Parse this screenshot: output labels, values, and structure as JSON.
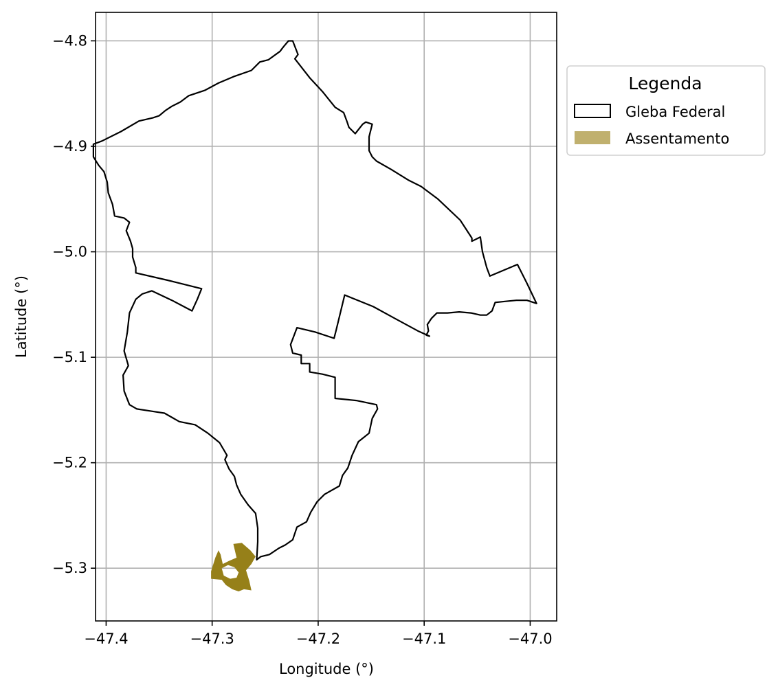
{
  "chart_data": {
    "type": "map",
    "xlabel": "Longitude (°)",
    "ylabel": "Latitude (°)",
    "xlim": [
      -47.41,
      -46.975
    ],
    "ylim": [
      -5.35,
      -4.773
    ],
    "grid": true,
    "xticks": [
      -47.4,
      -47.3,
      -47.2,
      -47.1,
      -47.0
    ],
    "xtick_labels": [
      "−47.4",
      "−47.3",
      "−47.2",
      "−47.1",
      "−47.0"
    ],
    "yticks": [
      -4.8,
      -4.9,
      -5.0,
      -5.1,
      -5.2,
      -5.3
    ],
    "ytick_labels": [
      "−4.8",
      "−4.9",
      "−5.0",
      "−5.1",
      "−5.2",
      "−5.3"
    ],
    "legend": {
      "title": "Legenda",
      "placement": "outside right, top",
      "entries": [
        {
          "label": "Gleba Federal",
          "style": "outline",
          "color": "#000000"
        },
        {
          "label": "Assentamento",
          "style": "fill",
          "color": "#c0b06e"
        }
      ]
    },
    "layers": [
      {
        "name": "Gleba Federal",
        "style": "outline",
        "stroke": "#000000",
        "coordinates": [
          [
            -47.228,
            -4.8
          ],
          [
            -47.224,
            -4.8
          ],
          [
            -47.219,
            -4.813
          ],
          [
            -47.222,
            -4.817
          ],
          [
            -47.208,
            -4.835
          ],
          [
            -47.196,
            -4.848
          ],
          [
            -47.184,
            -4.863
          ],
          [
            -47.176,
            -4.868
          ],
          [
            -47.173,
            -4.876
          ],
          [
            -47.171,
            -4.882
          ],
          [
            -47.165,
            -4.888
          ],
          [
            -47.158,
            -4.879
          ],
          [
            -47.155,
            -4.877
          ],
          [
            -47.149,
            -4.879
          ],
          [
            -47.152,
            -4.891
          ],
          [
            -47.152,
            -4.904
          ],
          [
            -47.149,
            -4.91
          ],
          [
            -47.145,
            -4.914
          ],
          [
            -47.131,
            -4.922
          ],
          [
            -47.115,
            -4.932
          ],
          [
            -47.103,
            -4.938
          ],
          [
            -47.087,
            -4.95
          ],
          [
            -47.066,
            -4.97
          ],
          [
            -47.055,
            -4.987
          ],
          [
            -47.055,
            -4.99
          ],
          [
            -47.047,
            -4.986
          ],
          [
            -47.045,
            -5.0
          ],
          [
            -47.041,
            -5.015
          ],
          [
            -47.038,
            -5.023
          ],
          [
            -47.012,
            -5.012
          ],
          [
            -47.003,
            -5.03
          ],
          [
            -46.994,
            -5.049
          ],
          [
            -47.003,
            -5.046
          ],
          [
            -47.013,
            -5.046
          ],
          [
            -47.023,
            -5.047
          ],
          [
            -47.033,
            -5.048
          ],
          [
            -47.036,
            -5.056
          ],
          [
            -47.041,
            -5.06
          ],
          [
            -47.047,
            -5.06
          ],
          [
            -47.056,
            -5.058
          ],
          [
            -47.067,
            -5.057
          ],
          [
            -47.078,
            -5.058
          ],
          [
            -47.088,
            -5.058
          ],
          [
            -47.093,
            -5.063
          ],
          [
            -47.097,
            -5.069
          ],
          [
            -47.096,
            -5.075
          ],
          [
            -47.098,
            -5.079
          ],
          [
            -47.095,
            -5.08
          ],
          [
            -47.106,
            -5.075
          ],
          [
            -47.128,
            -5.063
          ],
          [
            -47.148,
            -5.052
          ],
          [
            -47.175,
            -5.041
          ],
          [
            -47.183,
            -5.074
          ],
          [
            -47.185,
            -5.082
          ],
          [
            -47.203,
            -5.076
          ],
          [
            -47.22,
            -5.072
          ],
          [
            -47.226,
            -5.088
          ],
          [
            -47.224,
            -5.096
          ],
          [
            -47.216,
            -5.098
          ],
          [
            -47.216,
            -5.106
          ],
          [
            -47.208,
            -5.106
          ],
          [
            -47.208,
            -5.114
          ],
          [
            -47.196,
            -5.116
          ],
          [
            -47.184,
            -5.119
          ],
          [
            -47.184,
            -5.139
          ],
          [
            -47.164,
            -5.141
          ],
          [
            -47.145,
            -5.145
          ],
          [
            -47.144,
            -5.149
          ],
          [
            -47.149,
            -5.158
          ],
          [
            -47.152,
            -5.172
          ],
          [
            -47.162,
            -5.18
          ],
          [
            -47.168,
            -5.193
          ],
          [
            -47.172,
            -5.205
          ],
          [
            -47.177,
            -5.212
          ],
          [
            -47.18,
            -5.222
          ],
          [
            -47.194,
            -5.23
          ],
          [
            -47.201,
            -5.237
          ],
          [
            -47.207,
            -5.247
          ],
          [
            -47.211,
            -5.256
          ],
          [
            -47.22,
            -5.261
          ],
          [
            -47.224,
            -5.273
          ],
          [
            -47.231,
            -5.278
          ],
          [
            -47.237,
            -5.281
          ],
          [
            -47.246,
            -5.287
          ],
          [
            -47.254,
            -5.289
          ],
          [
            -47.258,
            -5.292
          ],
          [
            -47.257,
            -5.275
          ],
          [
            -47.257,
            -5.262
          ],
          [
            -47.259,
            -5.248
          ],
          [
            -47.266,
            -5.24
          ],
          [
            -47.273,
            -5.23
          ],
          [
            -47.277,
            -5.221
          ],
          [
            -47.279,
            -5.213
          ],
          [
            -47.284,
            -5.206
          ],
          [
            -47.288,
            -5.197
          ],
          [
            -47.286,
            -5.193
          ],
          [
            -47.293,
            -5.181
          ],
          [
            -47.304,
            -5.172
          ],
          [
            -47.316,
            -5.164
          ],
          [
            -47.331,
            -5.161
          ],
          [
            -47.345,
            -5.153
          ],
          [
            -47.358,
            -5.151
          ],
          [
            -47.371,
            -5.149
          ],
          [
            -47.378,
            -5.145
          ],
          [
            -47.383,
            -5.132
          ],
          [
            -47.384,
            -5.117
          ],
          [
            -47.379,
            -5.108
          ],
          [
            -47.383,
            -5.094
          ],
          [
            -47.38,
            -5.076
          ],
          [
            -47.378,
            -5.058
          ],
          [
            -47.372,
            -5.045
          ],
          [
            -47.366,
            -5.04
          ],
          [
            -47.357,
            -5.037
          ],
          [
            -47.338,
            -5.046
          ],
          [
            -47.319,
            -5.056
          ],
          [
            -47.314,
            -5.045
          ],
          [
            -47.31,
            -5.035
          ],
          [
            -47.342,
            -5.027
          ],
          [
            -47.372,
            -5.02
          ],
          [
            -47.372,
            -5.015
          ],
          [
            -47.375,
            -5.005
          ],
          [
            -47.375,
            -4.997
          ],
          [
            -47.377,
            -4.99
          ],
          [
            -47.381,
            -4.98
          ],
          [
            -47.378,
            -4.972
          ],
          [
            -47.383,
            -4.968
          ],
          [
            -47.392,
            -4.966
          ],
          [
            -47.394,
            -4.955
          ],
          [
            -47.398,
            -4.944
          ],
          [
            -47.399,
            -4.934
          ],
          [
            -47.402,
            -4.924
          ],
          [
            -47.407,
            -4.918
          ],
          [
            -47.412,
            -4.91
          ],
          [
            -47.412,
            -4.898
          ],
          [
            -47.404,
            -4.895
          ],
          [
            -47.386,
            -4.886
          ],
          [
            -47.369,
            -4.876
          ],
          [
            -47.356,
            -4.873
          ],
          [
            -47.35,
            -4.871
          ],
          [
            -47.344,
            -4.866
          ],
          [
            -47.338,
            -4.862
          ],
          [
            -47.33,
            -4.858
          ],
          [
            -47.322,
            -4.852
          ],
          [
            -47.307,
            -4.847
          ],
          [
            -47.294,
            -4.84
          ],
          [
            -47.28,
            -4.834
          ],
          [
            -47.263,
            -4.828
          ],
          [
            -47.255,
            -4.82
          ],
          [
            -47.247,
            -4.818
          ],
          [
            -47.236,
            -4.81
          ],
          [
            -47.233,
            -4.806
          ],
          [
            -47.228,
            -4.8
          ]
        ]
      },
      {
        "name": "Assentamento",
        "style": "fill",
        "fill": "#968019",
        "coordinates": [
          [
            -47.301,
            -5.303
          ],
          [
            -47.297,
            -5.29
          ],
          [
            -47.294,
            -5.283
          ],
          [
            -47.292,
            -5.287
          ],
          [
            -47.29,
            -5.296
          ],
          [
            -47.284,
            -5.293
          ],
          [
            -47.277,
            -5.29
          ],
          [
            -47.28,
            -5.277
          ],
          [
            -47.272,
            -5.276
          ],
          [
            -47.264,
            -5.283
          ],
          [
            -47.259,
            -5.289
          ],
          [
            -47.263,
            -5.296
          ],
          [
            -47.268,
            -5.302
          ],
          [
            -47.265,
            -5.312
          ],
          [
            -47.263,
            -5.321
          ],
          [
            -47.27,
            -5.32
          ],
          [
            -47.275,
            -5.322
          ],
          [
            -47.281,
            -5.32
          ],
          [
            -47.287,
            -5.316
          ],
          [
            -47.291,
            -5.311
          ],
          [
            -47.301,
            -5.31
          ],
          [
            -47.301,
            -5.303
          ]
        ],
        "holes": [
          [
            [
              -47.291,
              -5.3
            ],
            [
              -47.285,
              -5.297
            ],
            [
              -47.279,
              -5.299
            ],
            [
              -47.275,
              -5.304
            ],
            [
              -47.277,
              -5.309
            ],
            [
              -47.283,
              -5.31
            ],
            [
              -47.289,
              -5.307
            ],
            [
              -47.291,
              -5.3
            ]
          ]
        ]
      }
    ]
  }
}
